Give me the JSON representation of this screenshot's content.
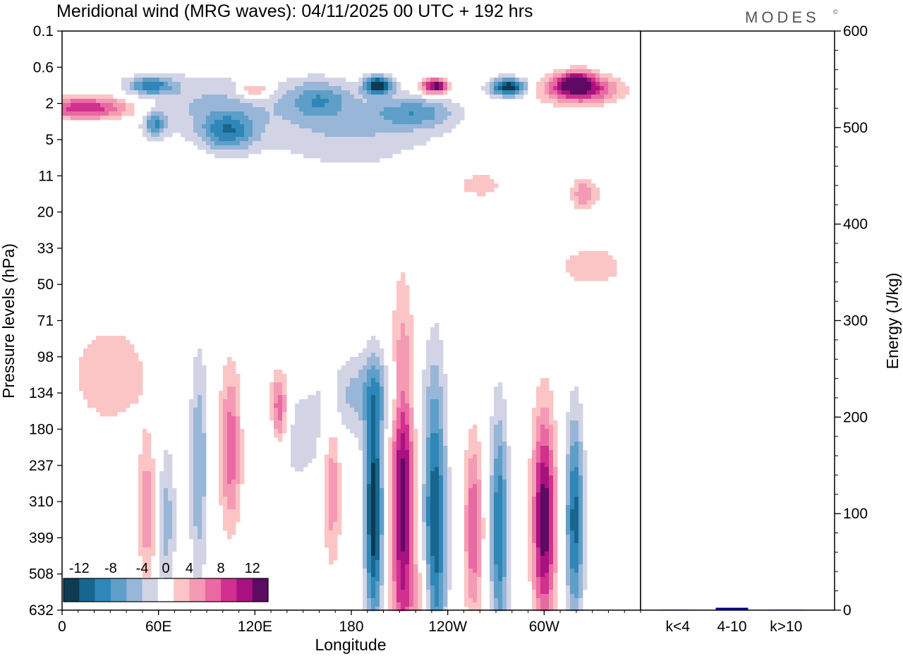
{
  "logo": "MODES",
  "logo_mark": "©",
  "chart_data": {
    "type": "heatmap",
    "title": "Meridional wind (MRG waves):  04/11/2025  00 UTC  + 192 hrs",
    "xlabel": "Longitude",
    "ylabel": "Pressure levels (hPa)",
    "x_ticks": [
      "0",
      "60E",
      "120E",
      "180",
      "120W",
      "60W"
    ],
    "x_tick_values": [
      0,
      60,
      120,
      180,
      240,
      300
    ],
    "x_range": [
      0,
      360
    ],
    "y_levels": [
      "0.1",
      "0.6",
      "2",
      "5",
      "11",
      "20",
      "33",
      "50",
      "71",
      "98",
      "134",
      "180",
      "237",
      "310",
      "399",
      "508",
      "632"
    ],
    "colorbar": {
      "labels": [
        "-12",
        "-8",
        "-4",
        "0",
        "4",
        "8",
        "12"
      ],
      "bins": [
        -14,
        -12,
        -10,
        -8,
        -6,
        -4,
        -2,
        2,
        4,
        6,
        8,
        10,
        12,
        14
      ],
      "colors": [
        "#0d3b52",
        "#17668f",
        "#2f86b8",
        "#5d9fc8",
        "#98b6d8",
        "#d2d4e6",
        "#ffffff",
        "#fbc5c5",
        "#f49ab4",
        "#e96aa2",
        "#d1308f",
        "#a81180",
        "#5c0a63"
      ]
    },
    "energy_panel": {
      "ylabel": "Energy (J/kg)",
      "ylim": [
        0,
        600
      ],
      "yticks": [
        "0",
        "100",
        "200",
        "300",
        "400",
        "500",
        "600"
      ],
      "ytick_values": [
        0,
        100,
        200,
        300,
        400,
        500,
        600
      ],
      "categories": [
        "k<4",
        "4-10",
        "k>10"
      ],
      "values": [
        0.5,
        2.5,
        0.5
      ],
      "bar_color": "#000080"
    },
    "features": [
      {
        "lon": 197,
        "level": 6.0,
        "value": -14,
        "sx": 6,
        "sy": 0.7
      },
      {
        "lon": 232,
        "level": 6.1,
        "value": 14,
        "sx": 6,
        "sy": 0.6
      },
      {
        "lon": 278,
        "level": 6.2,
        "value": -14,
        "sx": 8,
        "sy": 0.7
      },
      {
        "lon": 322,
        "level": 6.4,
        "value": 12,
        "sx": 16,
        "sy": 1.1
      },
      {
        "lon": 16,
        "level": 8.5,
        "value": 10,
        "sx": 22,
        "sy": 0.9
      },
      {
        "lon": 58,
        "level": 10.3,
        "value": -7,
        "sx": 5,
        "sy": 1.0
      },
      {
        "lon": 103,
        "level": 11.2,
        "value": -8,
        "sx": 12,
        "sy": 1.5
      },
      {
        "lon": 160,
        "level": 7.5,
        "value": -6,
        "sx": 14,
        "sy": 1.5
      },
      {
        "lon": 320,
        "level": 5.5,
        "value": 8,
        "sx": 7,
        "sy": 0.8
      },
      {
        "lon": 120,
        "level": 6.5,
        "value": 7,
        "sx": 7,
        "sy": 0.6
      },
      {
        "lon": 55,
        "level": 6.0,
        "value": -8,
        "sx": 10,
        "sy": 0.7
      },
      {
        "lon": 220,
        "level": 9.0,
        "value": -6,
        "sx": 18,
        "sy": 1.2
      },
      {
        "lon": 90,
        "level": 8.0,
        "value": -4,
        "sx": 35,
        "sy": 2.5
      },
      {
        "lon": 180,
        "level": 11.0,
        "value": -4,
        "sx": 40,
        "sy": 3.0
      },
      {
        "lon": 260,
        "level": 17.0,
        "value": 3,
        "sx": 12,
        "sy": 1.2
      },
      {
        "lon": 330,
        "level": 26.0,
        "value": 3,
        "sx": 18,
        "sy": 2.0
      },
      {
        "lon": 325,
        "level": 18.0,
        "value": 6,
        "sx": 6,
        "sy": 1.2
      },
      {
        "lon": 30,
        "level": 38.0,
        "value": 3,
        "sx": 22,
        "sy": 5.0
      },
      {
        "lon": 135,
        "level": 42.0,
        "value": 9,
        "sx": 4,
        "sy": 3.0
      },
      {
        "lon": 85,
        "level": 48.0,
        "value": -6,
        "sx": 4,
        "sy": 9.0
      },
      {
        "lon": 105,
        "level": 46.0,
        "value": 8,
        "sx": 5,
        "sy": 6.0
      },
      {
        "lon": 65,
        "level": 54.0,
        "value": -5,
        "sx": 4,
        "sy": 6.0
      },
      {
        "lon": 53,
        "level": 53.0,
        "value": 6,
        "sx": 4,
        "sy": 5.0
      },
      {
        "lon": 143,
        "level": 45.0,
        "value": -3,
        "sx": 20,
        "sy": 4.0
      },
      {
        "lon": 168,
        "level": 50.0,
        "value": 6,
        "sx": 4,
        "sy": 6.0
      },
      {
        "lon": 194,
        "level": 53.0,
        "value": -14,
        "sx": 4,
        "sy": 9.0
      },
      {
        "lon": 212,
        "level": 52.0,
        "value": 13,
        "sx": 5,
        "sy": 13.0
      },
      {
        "lon": 232,
        "level": 55.0,
        "value": -12,
        "sx": 5,
        "sy": 12.0
      },
      {
        "lon": 256,
        "level": 55.0,
        "value": 8,
        "sx": 4,
        "sy": 7.0
      },
      {
        "lon": 272,
        "level": 55.0,
        "value": -10,
        "sx": 4,
        "sy": 9.0
      },
      {
        "lon": 300,
        "level": 54.0,
        "value": 14,
        "sx": 5,
        "sy": 8.0
      },
      {
        "lon": 319,
        "level": 54.0,
        "value": -11,
        "sx": 4,
        "sy": 8.0
      },
      {
        "lon": 190,
        "level": 40.0,
        "value": -5,
        "sx": 18,
        "sy": 3.0
      },
      {
        "lon": 225,
        "level": 63.0,
        "value": 4,
        "sx": 5,
        "sy": 4.0
      }
    ]
  }
}
